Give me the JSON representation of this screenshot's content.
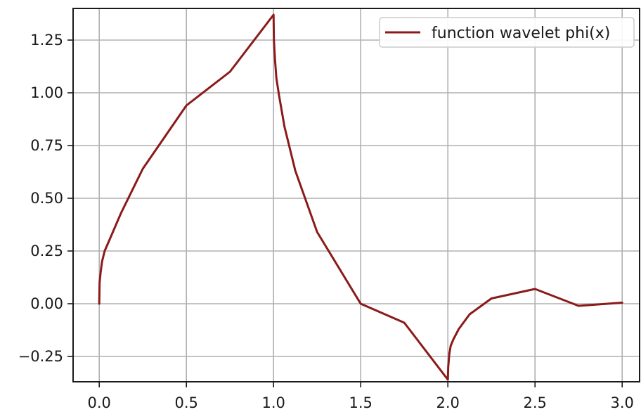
{
  "chart_data": {
    "type": "line",
    "title": "",
    "xlabel": "",
    "ylabel": "",
    "xlim": [
      -0.15,
      3.1
    ],
    "ylim": [
      -0.37,
      1.4
    ],
    "grid": true,
    "legend_position": "top-right",
    "xticks": [
      0.0,
      0.5,
      1.0,
      1.5,
      2.0,
      2.5,
      3.0
    ],
    "xtick_labels": [
      "0.0",
      "0.5",
      "1.0",
      "1.5",
      "2.0",
      "2.5",
      "3.0"
    ],
    "yticks": [
      -0.25,
      0.0,
      0.25,
      0.5,
      0.75,
      1.0,
      1.25
    ],
    "ytick_labels": [
      "−0.25",
      "0.00",
      "0.25",
      "0.50",
      "0.75",
      "1.00",
      "1.25"
    ],
    "series": [
      {
        "name": "function wavelet phi(x)",
        "color": "#8b1a1a",
        "x": [
          0.0,
          0.002,
          0.008,
          0.016,
          0.031,
          0.0625,
          0.125,
          0.25,
          0.5,
          0.75,
          1.0,
          1.002,
          1.008,
          1.016,
          1.031,
          1.0625,
          1.125,
          1.25,
          1.5,
          1.75,
          2.0,
          2.002,
          2.008,
          2.016,
          2.031,
          2.0625,
          2.125,
          2.25,
          2.5,
          2.75,
          3.0
        ],
        "y": [
          0.0,
          0.1,
          0.15,
          0.2,
          0.25,
          0.31,
          0.43,
          0.64,
          0.94,
          1.1,
          1.37,
          1.25,
          1.16,
          1.07,
          0.99,
          0.84,
          0.63,
          0.34,
          0.0,
          -0.09,
          -0.36,
          -0.3,
          -0.24,
          -0.2,
          -0.17,
          -0.12,
          -0.05,
          0.025,
          0.07,
          -0.01,
          0.005
        ]
      }
    ]
  }
}
